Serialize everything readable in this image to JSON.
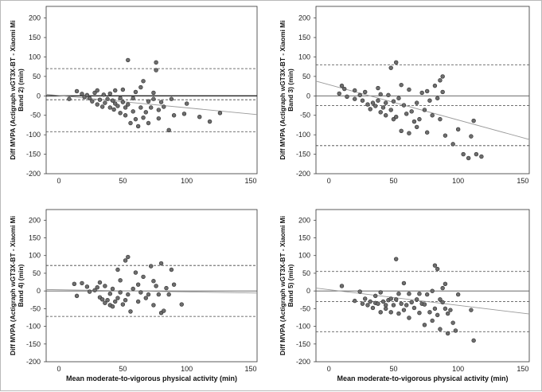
{
  "chart_data": [
    {
      "type": "scatter",
      "ylabel": [
        "Diff MVPA (Actigraph wGT3X-BT - Xiaomi Mi",
        "Band 2) (min)"
      ],
      "xlabel": "",
      "xlim": [
        -10,
        155
      ],
      "ylim": [
        -200,
        230
      ],
      "xticks": [
        "0",
        "50",
        "100",
        "150"
      ],
      "yticks": [
        "-200",
        "-150",
        "-100",
        "-50",
        "0",
        "50",
        "100",
        "150",
        "200"
      ],
      "mean_line": 0,
      "limit_lines": [
        -10,
        70,
        -92
      ],
      "trend": [
        [
          -10,
          4
        ],
        [
          155,
          -48
        ]
      ],
      "points": [
        [
          8,
          -8
        ],
        [
          14,
          12
        ],
        [
          18,
          5
        ],
        [
          20,
          -3
        ],
        [
          22,
          2
        ],
        [
          24,
          -6
        ],
        [
          26,
          -14
        ],
        [
          28,
          8
        ],
        [
          30,
          -22
        ],
        [
          30,
          14
        ],
        [
          32,
          -10
        ],
        [
          34,
          -28
        ],
        [
          35,
          3
        ],
        [
          36,
          -18
        ],
        [
          38,
          -8
        ],
        [
          40,
          -30
        ],
        [
          40,
          6
        ],
        [
          42,
          -12
        ],
        [
          43,
          -35
        ],
        [
          44,
          -20
        ],
        [
          44,
          14
        ],
        [
          46,
          -26
        ],
        [
          48,
          -6
        ],
        [
          48,
          -44
        ],
        [
          50,
          -16
        ],
        [
          50,
          16
        ],
        [
          52,
          -30
        ],
        [
          52,
          -50
        ],
        [
          54,
          -22
        ],
        [
          54,
          92
        ],
        [
          56,
          -70
        ],
        [
          58,
          -40
        ],
        [
          58,
          -6
        ],
        [
          60,
          -60
        ],
        [
          60,
          10
        ],
        [
          62,
          -78
        ],
        [
          64,
          -30
        ],
        [
          64,
          22
        ],
        [
          66,
          -56
        ],
        [
          66,
          38
        ],
        [
          68,
          -42
        ],
        [
          70,
          -14
        ],
        [
          70,
          -70
        ],
        [
          72,
          -30
        ],
        [
          74,
          8
        ],
        [
          74,
          -8
        ],
        [
          76,
          86
        ],
        [
          76,
          66
        ],
        [
          78,
          -36
        ],
        [
          78,
          -58
        ],
        [
          80,
          -16
        ],
        [
          82,
          -28
        ],
        [
          86,
          -88
        ],
        [
          88,
          -8
        ],
        [
          90,
          -50
        ],
        [
          98,
          -46
        ],
        [
          110,
          -54
        ],
        [
          118,
          -66
        ],
        [
          126,
          -44
        ],
        [
          100,
          -20
        ]
      ]
    },
    {
      "type": "scatter",
      "ylabel": [
        "Diff MVPA (Actigraph wGT3X-BT - Xiaomi Mi",
        "Band 3) (min)"
      ],
      "xlabel": "",
      "xlim": [
        -10,
        155
      ],
      "ylim": [
        -200,
        230
      ],
      "xticks": [
        "0",
        "50",
        "100",
        "150"
      ],
      "yticks": [
        "-200",
        "-150",
        "-100",
        "-50",
        "0",
        "50",
        "100",
        "150",
        "200"
      ],
      "mean_line": 0,
      "limit_lines": [
        -25,
        80,
        -128
      ],
      "trend": [
        [
          -10,
          38
        ],
        [
          155,
          -112
        ]
      ],
      "points": [
        [
          8,
          6
        ],
        [
          10,
          26
        ],
        [
          12,
          18
        ],
        [
          14,
          -2
        ],
        [
          20,
          14
        ],
        [
          20,
          -8
        ],
        [
          24,
          2
        ],
        [
          26,
          -12
        ],
        [
          28,
          10
        ],
        [
          30,
          -22
        ],
        [
          32,
          -34
        ],
        [
          34,
          -18
        ],
        [
          36,
          -26
        ],
        [
          38,
          -12
        ],
        [
          38,
          20
        ],
        [
          40,
          -42
        ],
        [
          40,
          4
        ],
        [
          42,
          -30
        ],
        [
          44,
          -50
        ],
        [
          44,
          -18
        ],
        [
          46,
          2
        ],
        [
          48,
          72
        ],
        [
          48,
          -36
        ],
        [
          50,
          -60
        ],
        [
          50,
          -14
        ],
        [
          52,
          -54
        ],
        [
          52,
          86
        ],
        [
          54,
          -6
        ],
        [
          56,
          -90
        ],
        [
          56,
          28
        ],
        [
          58,
          -24
        ],
        [
          60,
          -46
        ],
        [
          62,
          -96
        ],
        [
          62,
          16
        ],
        [
          64,
          -40
        ],
        [
          66,
          -66
        ],
        [
          68,
          -80
        ],
        [
          68,
          -18
        ],
        [
          70,
          -60
        ],
        [
          72,
          8
        ],
        [
          74,
          -36
        ],
        [
          76,
          -94
        ],
        [
          76,
          12
        ],
        [
          78,
          -12
        ],
        [
          80,
          -50
        ],
        [
          82,
          26
        ],
        [
          84,
          -6
        ],
        [
          86,
          40
        ],
        [
          86,
          -60
        ],
        [
          88,
          50
        ],
        [
          88,
          10
        ],
        [
          90,
          -102
        ],
        [
          96,
          -124
        ],
        [
          100,
          -86
        ],
        [
          104,
          -150
        ],
        [
          108,
          -160
        ],
        [
          110,
          -104
        ],
        [
          112,
          -64
        ],
        [
          114,
          -150
        ],
        [
          118,
          -156
        ]
      ]
    },
    {
      "type": "scatter",
      "ylabel": [
        "Diff MVPA (Actigraph wGT3X-BT - Xiaomi Mi",
        "Band 4) (min)"
      ],
      "xlabel": "Mean moderate-to-vigorous physical activity (min)",
      "xlim": [
        -10,
        155
      ],
      "ylim": [
        -200,
        230
      ],
      "xticks": [
        "0",
        "50",
        "100",
        "150"
      ],
      "yticks": [
        "-200",
        "-150",
        "-100",
        "-50",
        "0",
        "50",
        "100",
        "150",
        "200"
      ],
      "mean_line": 0,
      "limit_lines": [
        72,
        -72
      ],
      "trend": [
        [
          -10,
          4
        ],
        [
          155,
          -6
        ]
      ],
      "points": [
        [
          12,
          20
        ],
        [
          14,
          -14
        ],
        [
          18,
          22
        ],
        [
          22,
          12
        ],
        [
          24,
          -2
        ],
        [
          28,
          2
        ],
        [
          30,
          10
        ],
        [
          32,
          -18
        ],
        [
          32,
          24
        ],
        [
          34,
          -24
        ],
        [
          36,
          14
        ],
        [
          36,
          -34
        ],
        [
          38,
          -26
        ],
        [
          40,
          -8
        ],
        [
          40,
          -40
        ],
        [
          42,
          -44
        ],
        [
          42,
          6
        ],
        [
          44,
          -30
        ],
        [
          46,
          -20
        ],
        [
          46,
          60
        ],
        [
          48,
          -4
        ],
        [
          48,
          30
        ],
        [
          50,
          -38
        ],
        [
          52,
          86
        ],
        [
          52,
          -26
        ],
        [
          54,
          -10
        ],
        [
          54,
          96
        ],
        [
          56,
          -58
        ],
        [
          58,
          6
        ],
        [
          60,
          52
        ],
        [
          62,
          -30
        ],
        [
          62,
          18
        ],
        [
          64,
          -4
        ],
        [
          66,
          40
        ],
        [
          68,
          -20
        ],
        [
          70,
          -10
        ],
        [
          72,
          70
        ],
        [
          74,
          28
        ],
        [
          76,
          14
        ],
        [
          78,
          -10
        ],
        [
          80,
          78
        ],
        [
          80,
          -62
        ],
        [
          82,
          -56
        ],
        [
          84,
          8
        ],
        [
          86,
          -10
        ],
        [
          88,
          60
        ],
        [
          90,
          18
        ],
        [
          96,
          -38
        ],
        [
          74,
          -40
        ]
      ]
    },
    {
      "type": "scatter",
      "ylabel": [
        "Diff MVPA (Actigraph wGT3X-BT - Xiaomi Mi",
        "Band 5) (min)"
      ],
      "xlabel": "Mean moderate-to-vigorous physical activity (min)",
      "xlim": [
        -10,
        155
      ],
      "ylim": [
        -200,
        230
      ],
      "xticks": [
        "0",
        "50",
        "100",
        "150"
      ],
      "yticks": [
        "-200",
        "-150",
        "-100",
        "-50",
        "0",
        "50",
        "100",
        "150",
        "200"
      ],
      "mean_line": 0,
      "limit_lines": [
        -30,
        55,
        -115
      ],
      "trend": [
        [
          -10,
          8
        ],
        [
          155,
          -65
        ]
      ],
      "points": [
        [
          20,
          -28
        ],
        [
          24,
          -2
        ],
        [
          26,
          -36
        ],
        [
          28,
          -22
        ],
        [
          30,
          -40
        ],
        [
          32,
          -30
        ],
        [
          34,
          -48
        ],
        [
          36,
          -34
        ],
        [
          36,
          -14
        ],
        [
          38,
          -36
        ],
        [
          40,
          -4
        ],
        [
          40,
          -60
        ],
        [
          42,
          -30
        ],
        [
          44,
          -50
        ],
        [
          44,
          -40
        ],
        [
          46,
          -26
        ],
        [
          48,
          -60
        ],
        [
          48,
          -22
        ],
        [
          50,
          -40
        ],
        [
          52,
          -24
        ],
        [
          52,
          90
        ],
        [
          54,
          -64
        ],
        [
          54,
          -8
        ],
        [
          56,
          -36
        ],
        [
          58,
          -54
        ],
        [
          58,
          22
        ],
        [
          60,
          -40
        ],
        [
          62,
          -76
        ],
        [
          62,
          -8
        ],
        [
          64,
          -32
        ],
        [
          66,
          -48
        ],
        [
          68,
          -24
        ],
        [
          70,
          -62
        ],
        [
          70,
          -8
        ],
        [
          72,
          -36
        ],
        [
          74,
          -96
        ],
        [
          74,
          -38
        ],
        [
          76,
          -10
        ],
        [
          78,
          -60
        ],
        [
          80,
          -84
        ],
        [
          80,
          0
        ],
        [
          82,
          -50
        ],
        [
          82,
          72
        ],
        [
          84,
          62
        ],
        [
          84,
          -68
        ],
        [
          86,
          -108
        ],
        [
          86,
          -24
        ],
        [
          88,
          -32
        ],
        [
          88,
          8
        ],
        [
          90,
          -50
        ],
        [
          90,
          20
        ],
        [
          92,
          -120
        ],
        [
          92,
          -64
        ],
        [
          94,
          -54
        ],
        [
          96,
          -90
        ],
        [
          98,
          -112
        ],
        [
          100,
          -10
        ],
        [
          110,
          -54
        ],
        [
          112,
          -140
        ],
        [
          10,
          14
        ]
      ]
    }
  ]
}
